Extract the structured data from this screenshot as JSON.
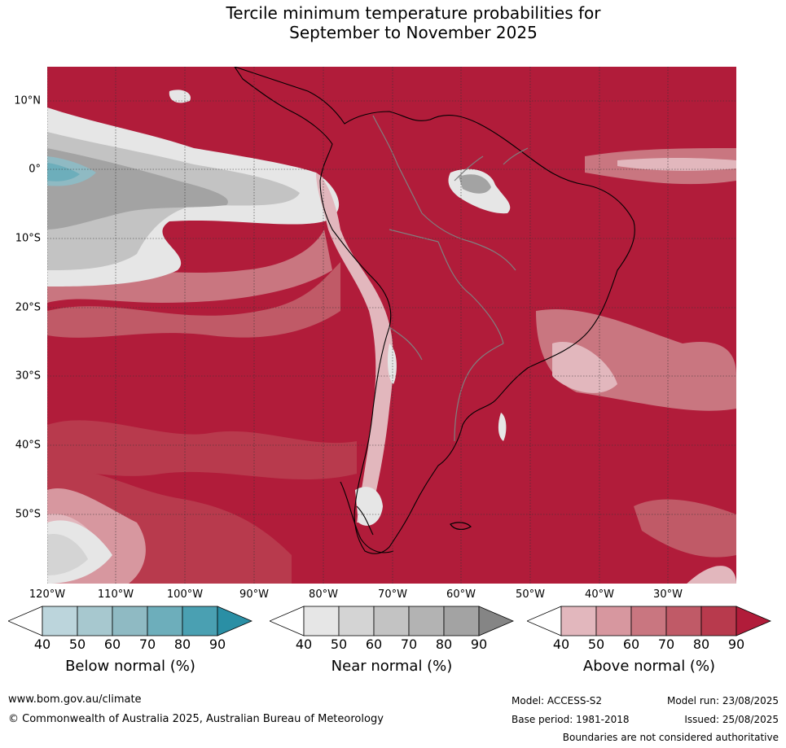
{
  "title_line1": "Tercile minimum temperature probabilities for",
  "title_line2": "September to November 2025",
  "lat_labels": [
    "10°N",
    "0°",
    "10°S",
    "20°S",
    "30°S",
    "40°S",
    "50°S"
  ],
  "lon_labels": [
    "120°W",
    "110°W",
    "100°W",
    "90°W",
    "80°W",
    "70°W",
    "60°W",
    "50°W",
    "40°W",
    "30°W"
  ],
  "colorbars": [
    {
      "label": "Below normal (%)",
      "ticks": [
        "40",
        "50",
        "60",
        "70",
        "80",
        "90"
      ],
      "colors": [
        "#ffffff",
        "#bcd5dc",
        "#a7c8cf",
        "#8fbac3",
        "#6daebb",
        "#4aa0b2",
        "#2a8fa5"
      ]
    },
    {
      "label": "Near normal (%)",
      "ticks": [
        "40",
        "50",
        "60",
        "70",
        "80",
        "90"
      ],
      "colors": [
        "#ffffff",
        "#e6e6e6",
        "#d4d4d4",
        "#c3c3c3",
        "#b3b3b3",
        "#a3a3a3",
        "#858585"
      ]
    },
    {
      "label": "Above normal (%)",
      "ticks": [
        "40",
        "50",
        "60",
        "70",
        "80",
        "90"
      ],
      "colors": [
        "#ffffff",
        "#e2b7bd",
        "#d7979f",
        "#c97680",
        "#c05a67",
        "#b83a4d",
        "#b11c3a"
      ]
    }
  ],
  "footer": {
    "website": "www.bom.gov.au/climate",
    "copyright": "© Commonwealth of Australia 2025, Australian Bureau of Meteorology",
    "model": "Model: ACCESS-S2",
    "base_period": "Base period: 1981-2018",
    "model_run": "Model run: 23/08/2025",
    "issued": "Issued: 25/08/2025",
    "disclaimer": "Boundaries are not considered authoritative"
  }
}
